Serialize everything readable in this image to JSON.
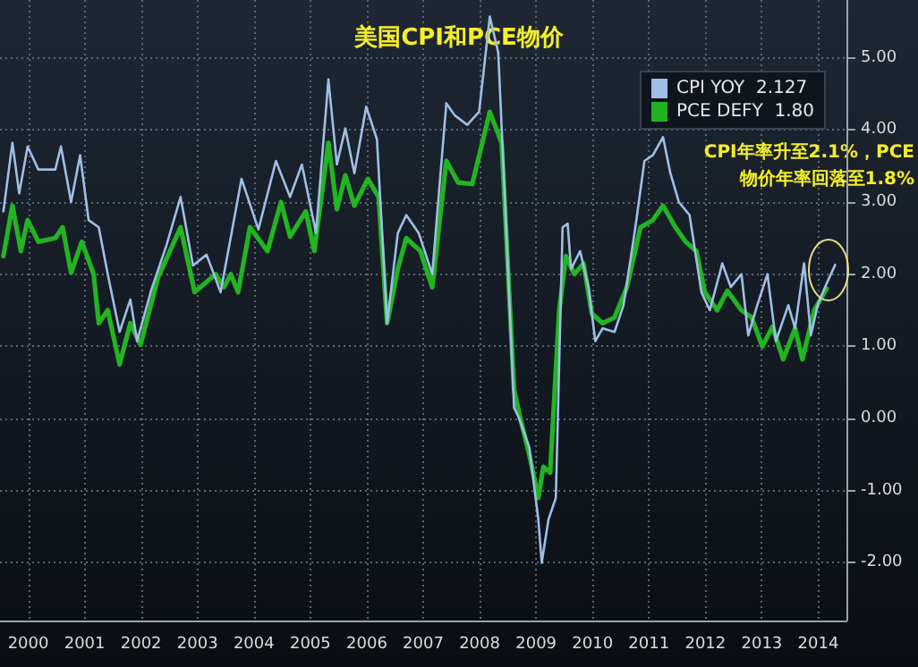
{
  "chart_data": {
    "type": "line",
    "title": "美国CPI和PCE物价",
    "annotations": [
      "CPI年率升至2.1%，PCE\n物价年率回落至1.8%"
    ],
    "series": [
      {
        "name": "CPI YOY  2.127",
        "color": "#9dbfe6",
        "x": [
          2000.06,
          2000.22,
          2000.34,
          2000.49,
          2000.68,
          2000.98,
          2001.08,
          2001.26,
          2001.42,
          2001.57,
          2001.75,
          2001.91,
          2002.12,
          2002.31,
          2002.43,
          2002.68,
          2002.95,
          2003.2,
          2003.42,
          2003.66,
          2003.91,
          2004.28,
          2004.58,
          2004.89,
          2005.14,
          2005.35,
          2005.6,
          2005.82,
          2005.97,
          2006.12,
          2006.28,
          2006.49,
          2006.68,
          2006.86,
          2007.05,
          2007.2,
          2007.42,
          2007.66,
          2007.91,
          2008.06,
          2008.28,
          2008.49,
          2008.68,
          2008.83,
          2008.95,
          2009.11,
          2009.2,
          2009.38,
          2009.54,
          2009.6,
          2009.72,
          2009.85,
          2009.97,
          2010.06,
          2010.12,
          2010.28,
          2010.43,
          2010.55,
          2010.68,
          2010.89,
          2011.05,
          2011.26,
          2011.42,
          2011.57,
          2011.75,
          2011.88,
          2012.03,
          2012.22,
          2012.43,
          2012.58,
          2012.8,
          2012.95,
          2013.14,
          2013.26,
          2013.42,
          2013.6,
          2013.75,
          2013.97,
          2014.09,
          2014.25,
          2014.37,
          2014.49,
          2014.62,
          2014.8
        ],
        "values": [
          2.87,
          3.82,
          3.12,
          3.77,
          3.45,
          3.45,
          3.77,
          3.0,
          3.65,
          2.75,
          2.65,
          2.0,
          1.2,
          1.65,
          1.07,
          1.78,
          2.4,
          3.07,
          2.12,
          2.27,
          1.75,
          3.32,
          2.62,
          3.57,
          3.07,
          3.52,
          2.57,
          4.7,
          3.52,
          4.02,
          3.4,
          4.32,
          3.87,
          1.32,
          2.57,
          2.82,
          2.57,
          2.0,
          4.37,
          4.2,
          4.07,
          4.25,
          5.57,
          5.07,
          3.0,
          0.15,
          0.0,
          -0.4,
          -1.4,
          -2.0,
          -1.4,
          -1.1,
          2.65,
          2.7,
          2.07,
          2.32,
          1.82,
          1.07,
          1.25,
          1.2,
          1.57,
          2.65,
          3.57,
          3.65,
          3.9,
          3.4,
          3.0,
          2.82,
          1.75,
          1.5,
          2.15,
          1.82,
          2.0,
          1.15,
          1.57,
          2.0,
          1.07,
          1.57,
          1.25,
          2.15,
          1.15,
          1.57,
          1.82,
          2.13
        ]
      },
      {
        "name": "PCE DEFY  1.80",
        "color": "#22b422",
        "x": [
          2000.06,
          2000.22,
          2000.37,
          2000.49,
          2000.68,
          2000.98,
          2001.11,
          2001.26,
          2001.45,
          2001.66,
          2001.75,
          2001.91,
          2002.12,
          2002.31,
          2002.49,
          2002.8,
          2003.2,
          2003.45,
          2003.82,
          2003.97,
          2004.09,
          2004.22,
          2004.43,
          2004.74,
          2004.98,
          2005.14,
          2005.42,
          2005.57,
          2005.82,
          2005.97,
          2006.12,
          2006.28,
          2006.52,
          2006.71,
          2006.86,
          2007.05,
          2007.2,
          2007.45,
          2007.66,
          2007.91,
          2008.12,
          2008.37,
          2008.68,
          2008.89,
          2009.11,
          2009.2,
          2009.38,
          2009.54,
          2009.63,
          2009.75,
          2009.91,
          2010.03,
          2010.18,
          2010.34,
          2010.49,
          2010.68,
          2010.89,
          2011.11,
          2011.35,
          2011.57,
          2011.75,
          2011.97,
          2012.15,
          2012.34,
          2012.49,
          2012.71,
          2012.89,
          2013.14,
          2013.32,
          2013.51,
          2013.69,
          2013.88,
          2014.09,
          2014.22,
          2014.43,
          2014.65
        ],
        "values": [
          2.25,
          2.95,
          2.32,
          2.75,
          2.45,
          2.5,
          2.65,
          2.02,
          2.45,
          2.0,
          1.32,
          1.5,
          0.75,
          1.32,
          1.02,
          1.95,
          2.65,
          1.75,
          2.0,
          1.82,
          2.0,
          1.75,
          2.65,
          2.32,
          3.0,
          2.52,
          2.87,
          2.32,
          3.82,
          2.9,
          3.37,
          2.95,
          3.32,
          3.07,
          1.32,
          2.07,
          2.5,
          2.32,
          1.82,
          3.57,
          3.27,
          3.25,
          4.25,
          3.82,
          0.4,
          0.07,
          -0.5,
          -1.1,
          -0.67,
          -0.75,
          1.5,
          2.25,
          2.0,
          2.15,
          1.45,
          1.32,
          1.4,
          1.82,
          2.65,
          2.75,
          2.95,
          2.65,
          2.45,
          2.32,
          1.75,
          1.5,
          1.77,
          1.5,
          1.4,
          1.0,
          1.27,
          0.82,
          1.25,
          0.82,
          1.5,
          1.8
        ]
      }
    ],
    "xlim": [
      2000,
      2015
    ],
    "xticks": [
      {
        "value": 2000.5,
        "label": "2000"
      },
      {
        "value": 2001.5,
        "label": "2001"
      },
      {
        "value": 2002.5,
        "label": "2002"
      },
      {
        "value": 2003.5,
        "label": "2003"
      },
      {
        "value": 2004.5,
        "label": "2004"
      },
      {
        "value": 2005.5,
        "label": "2005"
      },
      {
        "value": 2006.5,
        "label": "2006"
      },
      {
        "value": 2007.5,
        "label": "2007"
      },
      {
        "value": 2008.5,
        "label": "2008"
      },
      {
        "value": 2009.5,
        "label": "2009"
      },
      {
        "value": 2010.5,
        "label": "2010"
      },
      {
        "value": 2011.5,
        "label": "2011"
      },
      {
        "value": 2012.5,
        "label": "2012"
      },
      {
        "value": 2013.5,
        "label": "2013"
      },
      {
        "value": 2014.5,
        "label": "2014"
      }
    ],
    "ylim": [
      -2.8,
      5.8
    ],
    "yticks": [
      {
        "value": -2,
        "label": "-2.00"
      },
      {
        "value": -1,
        "label": "-1.00"
      },
      {
        "value": 0,
        "label": "0.00"
      },
      {
        "value": 1,
        "label": "1.00"
      },
      {
        "value": 2,
        "label": "2.00"
      },
      {
        "value": 3,
        "label": "3.00"
      },
      {
        "value": 4,
        "label": "4.00"
      },
      {
        "value": 5,
        "label": "5.00"
      }
    ],
    "grid": true,
    "legend": "top right",
    "marker": "none",
    "line_style": "solid"
  }
}
